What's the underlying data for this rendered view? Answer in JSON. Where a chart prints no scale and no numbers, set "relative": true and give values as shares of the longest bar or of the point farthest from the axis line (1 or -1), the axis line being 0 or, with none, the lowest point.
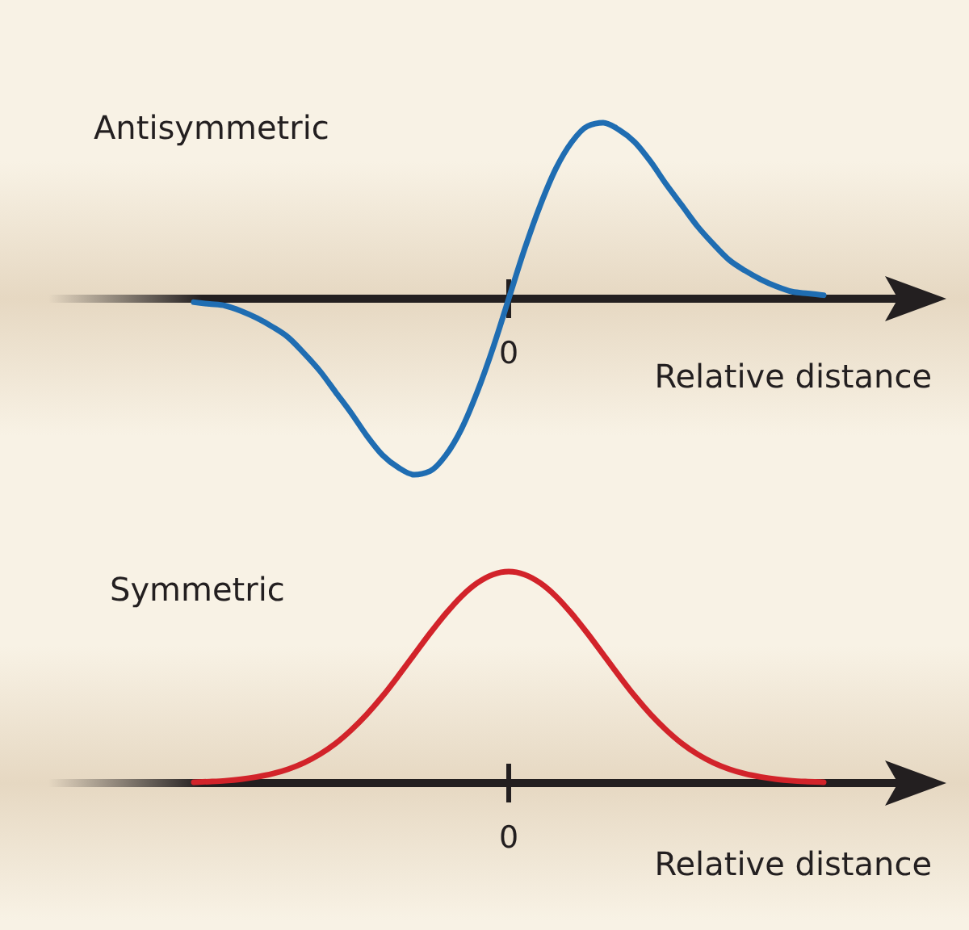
{
  "chart_data": [
    {
      "type": "line",
      "title": "Antisymmetric",
      "xlabel": "Relative distance",
      "relative": true,
      "annotations": [
        "0"
      ],
      "categories": [
        null,
        null,
        null,
        null,
        null,
        null,
        null,
        null,
        null,
        null,
        null,
        null,
        null,
        null,
        null,
        null,
        null,
        null,
        null,
        null,
        null,
        null,
        null,
        null,
        null,
        null,
        null,
        null,
        null,
        null,
        null,
        null,
        null,
        null,
        null,
        null,
        null,
        null,
        null,
        null,
        null
      ],
      "series": [
        {
          "color": "#1f6db2",
          "values": [
            -0.02,
            -0.03,
            -0.04,
            -0.07,
            -0.11,
            -0.16,
            -0.22,
            -0.31,
            -0.41,
            -0.53,
            -0.65,
            -0.78,
            -0.89,
            -0.96,
            -1.0,
            -0.98,
            -0.89,
            -0.74,
            -0.53,
            -0.28,
            0,
            0.28,
            0.53,
            0.74,
            0.89,
            0.98,
            1.0,
            0.96,
            0.89,
            0.78,
            0.65,
            0.53,
            0.41,
            0.31,
            0.22,
            0.16,
            0.11,
            0.07,
            0.04,
            0.03,
            0.02
          ]
        }
      ]
    },
    {
      "type": "line",
      "title": "Symmetric",
      "xlabel": "Relative distance",
      "relative": true,
      "annotations": [
        "0"
      ],
      "categories": [
        null,
        null,
        null,
        null,
        null,
        null,
        null,
        null,
        null,
        null,
        null,
        null,
        null,
        null,
        null,
        null,
        null,
        null,
        null,
        null,
        null,
        null,
        null,
        null,
        null,
        null,
        null,
        null,
        null,
        null,
        null,
        null,
        null,
        null,
        null,
        null,
        null,
        null,
        null,
        null,
        null
      ],
      "series": [
        {
          "color": "#d2232a",
          "values": [
            0.004,
            0.007,
            0.011,
            0.018,
            0.029,
            0.044,
            0.066,
            0.096,
            0.136,
            0.187,
            0.251,
            0.326,
            0.412,
            0.508,
            0.608,
            0.708,
            0.801,
            0.883,
            0.946,
            0.986,
            1,
            0.986,
            0.946,
            0.883,
            0.801,
            0.708,
            0.608,
            0.508,
            0.412,
            0.326,
            0.251,
            0.187,
            0.136,
            0.096,
            0.066,
            0.044,
            0.029,
            0.018,
            0.011,
            0.007,
            0.004
          ]
        }
      ]
    }
  ]
}
